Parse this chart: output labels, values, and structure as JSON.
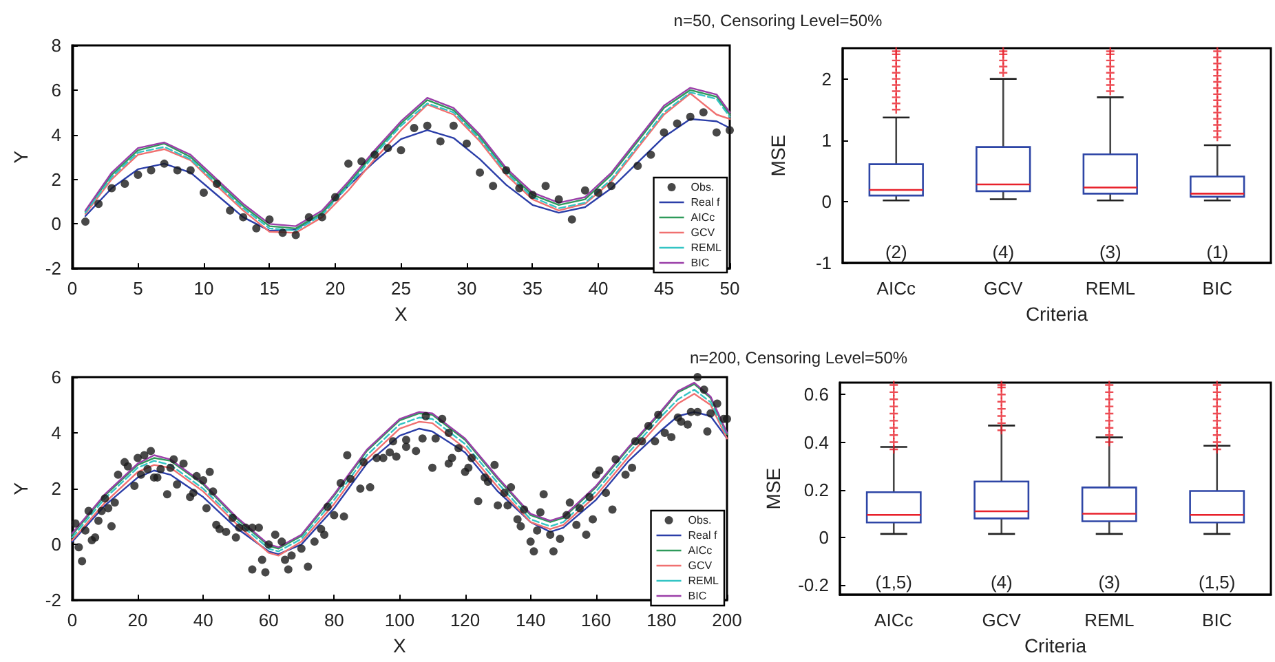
{
  "chart_data": [
    {
      "type": "line",
      "title": "n=50, Censoring Level=50%",
      "xlabel": "X",
      "ylabel": "Y",
      "xlim": [
        0,
        50
      ],
      "xticks": [
        0,
        5,
        10,
        15,
        20,
        25,
        30,
        35,
        40,
        45,
        50
      ],
      "ylim": [
        -2,
        8
      ],
      "yticks": [
        -2,
        0,
        2,
        4,
        6,
        8
      ],
      "legend": "bottom right",
      "series": [
        {
          "name": "Obs.",
          "type": "scatter",
          "color": "#1a1a1a",
          "x": [
            1,
            2,
            3,
            4,
            5,
            6,
            7,
            8,
            9,
            10,
            11,
            12,
            13,
            14,
            15,
            16,
            17,
            18,
            19,
            20,
            21,
            22,
            23,
            24,
            25,
            26,
            27,
            28,
            29,
            30,
            31,
            32,
            33,
            34,
            35,
            36,
            37,
            38,
            39,
            40,
            41,
            42,
            43,
            44,
            45,
            46,
            47,
            48,
            49,
            50
          ],
          "values": [
            0.1,
            0.9,
            1.6,
            1.8,
            2.2,
            2.4,
            2.7,
            2.4,
            2.4,
            1.4,
            1.8,
            0.6,
            0.3,
            -0.2,
            0.2,
            -0.4,
            -0.5,
            0.3,
            0.3,
            1.2,
            2.7,
            2.8,
            3.1,
            3.4,
            3.3,
            4.3,
            4.4,
            3.7,
            4.4,
            3.6,
            2.3,
            1.7,
            2.4,
            1.6,
            1.3,
            1.7,
            1.1,
            0.2,
            1.5,
            1.4,
            1.7,
            null,
            2.6,
            3.1,
            4.1,
            4.5,
            4.8,
            5.0,
            4.1,
            4.2
          ]
        },
        {
          "name": "Real f",
          "type": "line",
          "color": "#2b3ea8",
          "x": [
            1,
            3,
            5,
            7,
            9,
            11,
            13,
            15,
            17,
            19,
            21,
            23,
            25,
            27,
            29,
            31,
            33,
            35,
            37,
            39,
            41,
            43,
            45,
            47,
            49,
            50
          ],
          "values": [
            0.35,
            1.6,
            2.45,
            2.7,
            2.3,
            1.3,
            0.3,
            -0.3,
            -0.25,
            0.5,
            1.7,
            2.8,
            3.8,
            4.2,
            3.85,
            2.9,
            1.75,
            0.85,
            0.5,
            0.75,
            1.6,
            2.75,
            3.9,
            4.7,
            4.6,
            4.3
          ]
        },
        {
          "name": "AICc",
          "type": "line",
          "color": "#2e9a5a",
          "x": [
            1,
            3,
            5,
            7,
            9,
            11,
            13,
            15,
            17,
            19,
            21,
            23,
            25,
            27,
            29,
            31,
            33,
            35,
            37,
            39,
            41,
            43,
            45,
            47,
            49,
            50
          ],
          "values": [
            0.55,
            2.2,
            3.3,
            3.6,
            3.0,
            1.9,
            0.8,
            -0.1,
            -0.2,
            0.5,
            1.8,
            3.2,
            4.5,
            5.55,
            5.1,
            3.9,
            2.4,
            1.3,
            0.85,
            1.1,
            2.2,
            3.7,
            5.2,
            6.0,
            5.7,
            4.9
          ]
        },
        {
          "name": "GCV",
          "type": "line",
          "color": "#f07070",
          "x": [
            1,
            3,
            5,
            7,
            9,
            11,
            13,
            15,
            17,
            19,
            21,
            23,
            25,
            27,
            29,
            31,
            33,
            35,
            37,
            39,
            41,
            43,
            45,
            47,
            49,
            50
          ],
          "values": [
            0.45,
            2.0,
            3.1,
            3.35,
            2.85,
            1.7,
            0.6,
            -0.35,
            -0.4,
            0.3,
            1.5,
            2.9,
            4.2,
            5.35,
            4.9,
            3.7,
            2.2,
            1.1,
            0.6,
            0.9,
            1.9,
            3.4,
            4.9,
            5.85,
            4.9,
            4.7
          ]
        },
        {
          "name": "REML",
          "type": "line",
          "color": "#33c4c4",
          "line_style": "dashed",
          "x": [
            1,
            3,
            5,
            7,
            9,
            11,
            13,
            15,
            17,
            19,
            21,
            23,
            25,
            27,
            29,
            31,
            33,
            35,
            37,
            39,
            41,
            43,
            45,
            47,
            49,
            50
          ],
          "values": [
            0.5,
            2.1,
            3.2,
            3.45,
            2.9,
            1.8,
            0.7,
            -0.2,
            -0.3,
            0.4,
            1.7,
            3.1,
            4.4,
            5.4,
            5.0,
            3.8,
            2.3,
            1.2,
            0.7,
            0.95,
            2.0,
            3.5,
            5.0,
            5.9,
            5.6,
            4.8
          ]
        },
        {
          "name": "BIC",
          "type": "line",
          "color": "#9b3fa8",
          "x": [
            1,
            3,
            5,
            7,
            9,
            11,
            13,
            15,
            17,
            19,
            21,
            23,
            25,
            27,
            29,
            31,
            33,
            35,
            37,
            39,
            41,
            43,
            45,
            47,
            49,
            50
          ],
          "values": [
            0.6,
            2.3,
            3.4,
            3.65,
            3.1,
            2.0,
            0.9,
            0.0,
            -0.1,
            0.6,
            1.9,
            3.3,
            4.6,
            5.65,
            5.2,
            4.0,
            2.5,
            1.4,
            0.95,
            1.2,
            2.3,
            3.8,
            5.3,
            6.1,
            5.8,
            5.0
          ]
        }
      ]
    },
    {
      "type": "box",
      "xlabel": "Criteria",
      "ylabel": "MSE",
      "categories": [
        "AICc",
        "GCV",
        "REML",
        "BIC"
      ],
      "ylim": [
        -1,
        2.5
      ],
      "yticks": [
        -1,
        0,
        1,
        2
      ],
      "annotations": [
        "(2)",
        "(4)",
        "(3)",
        "(1)"
      ],
      "series": [
        {
          "color": "#2e46a6",
          "boxes": [
            {
              "low": 0.02,
              "q1": 0.1,
              "median": 0.19,
              "q3": 0.61,
              "high": 1.37,
              "outliers": [
                1.5,
                1.6,
                1.7,
                1.8,
                1.9,
                2.0,
                2.1,
                2.2,
                2.3,
                2.4,
                2.45
              ]
            },
            {
              "low": 0.04,
              "q1": 0.17,
              "median": 0.28,
              "q3": 0.89,
              "high": 2.0,
              "outliers": [
                2.1,
                2.2,
                2.3,
                2.4,
                2.45
              ]
            },
            {
              "low": 0.02,
              "q1": 0.13,
              "median": 0.23,
              "q3": 0.77,
              "high": 1.7,
              "outliers": [
                1.8,
                1.9,
                2.0,
                2.1,
                2.2,
                2.3,
                2.4,
                2.45
              ]
            },
            {
              "low": 0.02,
              "q1": 0.08,
              "median": 0.13,
              "q3": 0.41,
              "high": 0.92,
              "outliers": [
                1.05,
                1.15,
                1.25,
                1.35,
                1.45,
                1.55,
                1.65,
                1.75,
                1.85,
                1.95,
                2.05,
                2.15,
                2.25,
                2.35,
                2.45
              ]
            }
          ]
        }
      ]
    },
    {
      "type": "line",
      "title": "n=200, Censoring Level=50%",
      "xlabel": "X",
      "ylabel": "Y",
      "xlim": [
        0,
        200
      ],
      "xticks": [
        0,
        20,
        40,
        60,
        80,
        100,
        120,
        140,
        160,
        180,
        200
      ],
      "ylim": [
        -2,
        6
      ],
      "yticks": [
        -2,
        0,
        2,
        4,
        6
      ],
      "legend": "bottom right",
      "series": [
        {
          "name": "Obs.",
          "type": "scatter",
          "color": "#1a1a1a",
          "x": [
            1,
            2,
            3,
            4,
            5,
            6,
            7,
            8,
            9,
            10,
            11,
            12,
            13,
            14,
            16,
            17,
            19,
            20,
            21,
            22,
            23,
            24,
            25,
            26,
            27,
            29,
            30,
            31,
            32,
            34,
            36,
            37,
            38,
            40,
            41,
            42,
            43,
            44,
            45,
            47,
            49,
            50,
            51,
            53,
            55,
            55,
            57,
            58,
            59,
            60,
            62,
            64,
            65,
            66,
            67,
            70,
            72,
            74,
            76,
            77,
            78,
            80,
            82,
            83,
            84,
            85,
            88,
            89,
            91,
            93,
            95,
            97,
            98,
            99,
            102,
            102,
            105,
            107,
            108,
            110,
            111,
            113,
            115,
            115,
            116,
            118,
            120,
            121,
            122,
            124,
            126,
            127,
            129,
            130,
            132,
            133,
            134,
            136,
            137,
            138,
            140,
            141,
            142,
            143,
            144,
            146,
            147,
            149,
            151,
            152,
            154,
            155,
            157,
            158,
            159,
            160,
            161,
            163,
            165,
            166,
            169,
            171,
            172,
            174,
            176,
            178,
            179,
            181,
            183,
            185,
            186,
            188,
            189,
            191,
            191,
            193,
            194,
            195,
            197,
            199,
            200
          ],
          "values": [
            0.75,
            -0.1,
            -0.6,
            0.5,
            1.2,
            0.15,
            0.25,
            0.85,
            1.2,
            1.65,
            1.3,
            0.65,
            1.5,
            2.5,
            2.95,
            2.8,
            2.1,
            3.1,
            2.5,
            3.2,
            2.7,
            3.35,
            2.4,
            2.4,
            2.7,
            1.8,
            2.75,
            3.05,
            2.15,
            2.9,
            1.7,
            1.85,
            2.45,
            2.3,
            1.3,
            2.6,
            1.9,
            0.7,
            0.55,
            0.45,
            0.95,
            0.25,
            0.6,
            0.6,
            0.6,
            -0.9,
            0.6,
            -0.55,
            -1.0,
            0.0,
            0.35,
            0.1,
            -0.55,
            -0.9,
            -0.4,
            -0.15,
            -0.8,
            0.1,
            0.55,
            0.35,
            1.35,
            1.05,
            2.2,
            1.0,
            3.2,
            2.35,
            2.0,
            2.95,
            2.05,
            3.1,
            3.1,
            3.3,
            3.7,
            3.15,
            3.75,
            3.5,
            3.35,
            3.8,
            4.6,
            2.75,
            3.8,
            4.5,
            4.0,
            2.9,
            3.1,
            3.45,
            2.6,
            2.75,
            3.1,
            1.55,
            2.4,
            2.25,
            2.85,
            1.4,
            1.85,
            1.4,
            2.05,
            0.9,
            0.65,
            1.25,
            0.1,
            -0.25,
            0.5,
            1.15,
            1.8,
            0.35,
            -0.25,
            0.2,
            1.05,
            1.5,
            0.7,
            1.3,
            0.35,
            1.7,
            0.9,
            2.5,
            2.65,
            1.85,
            1.25,
            3.05,
            2.5,
            2.75,
            3.7,
            3.7,
            4.25,
            3.7,
            4.65,
            4.0,
            3.85,
            4.55,
            4.4,
            4.3,
            4.75,
            6.0,
            4.75,
            5.55,
            4.05,
            4.7,
            5.05,
            4.5,
            4.5
          ]
        },
        {
          "name": "Real f",
          "type": "line",
          "color": "#2b3ea8",
          "x": [
            0,
            10,
            20,
            25,
            30,
            40,
            50,
            60,
            63,
            70,
            80,
            90,
            100,
            106,
            110,
            120,
            130,
            140,
            146,
            150,
            160,
            170,
            180,
            185,
            190,
            195,
            200
          ],
          "values": [
            0.1,
            1.4,
            2.4,
            2.65,
            2.5,
            1.7,
            0.6,
            -0.25,
            -0.35,
            0.0,
            1.3,
            2.9,
            3.9,
            4.15,
            4.05,
            3.3,
            1.9,
            0.8,
            0.45,
            0.6,
            1.6,
            3.0,
            4.1,
            4.6,
            4.75,
            4.6,
            3.8
          ]
        },
        {
          "name": "AICc",
          "type": "line",
          "color": "#2e9a5a",
          "x": [
            0,
            10,
            20,
            25,
            30,
            40,
            50,
            60,
            63,
            70,
            80,
            90,
            100,
            106,
            110,
            120,
            130,
            140,
            146,
            150,
            160,
            170,
            180,
            185,
            190,
            195,
            200
          ],
          "values": [
            0.35,
            1.75,
            2.85,
            3.1,
            3.0,
            2.15,
            0.95,
            -0.05,
            -0.15,
            0.3,
            1.75,
            3.35,
            4.45,
            4.7,
            4.65,
            3.75,
            2.35,
            1.05,
            0.8,
            0.95,
            2.05,
            3.45,
            4.75,
            5.45,
            5.75,
            5.25,
            3.95
          ]
        },
        {
          "name": "GCV",
          "type": "line",
          "color": "#f07070",
          "x": [
            0,
            10,
            20,
            25,
            30,
            40,
            50,
            60,
            63,
            70,
            80,
            90,
            100,
            106,
            110,
            120,
            130,
            140,
            146,
            150,
            160,
            170,
            180,
            185,
            190,
            195,
            200
          ],
          "values": [
            0.15,
            1.5,
            2.6,
            2.85,
            2.75,
            1.9,
            0.75,
            -0.3,
            -0.4,
            0.1,
            1.45,
            3.05,
            4.15,
            4.4,
            4.35,
            3.45,
            2.05,
            0.8,
            0.55,
            0.7,
            1.75,
            3.15,
            4.45,
            5.05,
            5.4,
            5.0,
            3.8
          ]
        },
        {
          "name": "REML",
          "type": "line",
          "color": "#33c4c4",
          "line_style": "dashed",
          "x": [
            0,
            10,
            20,
            25,
            30,
            40,
            50,
            60,
            63,
            70,
            80,
            90,
            100,
            106,
            110,
            120,
            130,
            140,
            146,
            150,
            160,
            170,
            180,
            185,
            190,
            195,
            200
          ],
          "values": [
            0.25,
            1.65,
            2.75,
            3.0,
            2.85,
            2.0,
            0.85,
            -0.15,
            -0.25,
            0.2,
            1.6,
            3.2,
            4.3,
            4.55,
            4.5,
            3.6,
            2.2,
            0.9,
            0.65,
            0.8,
            1.9,
            3.3,
            4.6,
            5.2,
            5.55,
            5.1,
            3.9
          ]
        },
        {
          "name": "BIC",
          "type": "line",
          "color": "#9b3fa8",
          "x": [
            0,
            10,
            20,
            25,
            30,
            40,
            50,
            60,
            63,
            70,
            80,
            90,
            100,
            106,
            110,
            120,
            130,
            140,
            146,
            150,
            160,
            170,
            180,
            185,
            190,
            195,
            200
          ],
          "values": [
            0.4,
            1.8,
            2.9,
            3.2,
            3.05,
            2.2,
            1.0,
            0.0,
            -0.1,
            0.35,
            1.8,
            3.4,
            4.5,
            4.75,
            4.7,
            3.8,
            2.4,
            1.1,
            0.85,
            1.0,
            2.1,
            3.5,
            4.8,
            5.5,
            5.8,
            5.3,
            4.0
          ]
        }
      ]
    },
    {
      "type": "box",
      "xlabel": "Criteria",
      "ylabel": "MSE",
      "categories": [
        "AICc",
        "GCV",
        "REML",
        "BIC"
      ],
      "ylim": [
        -0.24,
        0.65
      ],
      "yticks": [
        -0.2,
        0,
        0.2,
        0.4,
        0.6
      ],
      "annotations": [
        "(1,5)",
        "(4)",
        "(3)",
        "(1,5)"
      ],
      "series": [
        {
          "color": "#2e46a6",
          "boxes": [
            {
              "low": 0.015,
              "q1": 0.063,
              "median": 0.095,
              "q3": 0.19,
              "high": 0.38,
              "outliers": [
                0.37,
                0.4,
                0.43,
                0.46,
                0.49,
                0.52,
                0.55,
                0.58,
                0.61,
                0.64
              ]
            },
            {
              "low": 0.015,
              "q1": 0.08,
              "median": 0.11,
              "q3": 0.235,
              "high": 0.47,
              "outliers": [
                0.45,
                0.48,
                0.51,
                0.54,
                0.57,
                0.6,
                0.63,
                0.64
              ]
            },
            {
              "low": 0.015,
              "q1": 0.068,
              "median": 0.1,
              "q3": 0.21,
              "high": 0.42,
              "outliers": [
                0.4,
                0.43,
                0.46,
                0.49,
                0.52,
                0.55,
                0.58,
                0.61,
                0.64
              ]
            },
            {
              "low": 0.015,
              "q1": 0.063,
              "median": 0.095,
              "q3": 0.195,
              "high": 0.385,
              "outliers": [
                0.37,
                0.4,
                0.43,
                0.46,
                0.49,
                0.52,
                0.55,
                0.58,
                0.61,
                0.64
              ]
            }
          ]
        }
      ]
    }
  ]
}
